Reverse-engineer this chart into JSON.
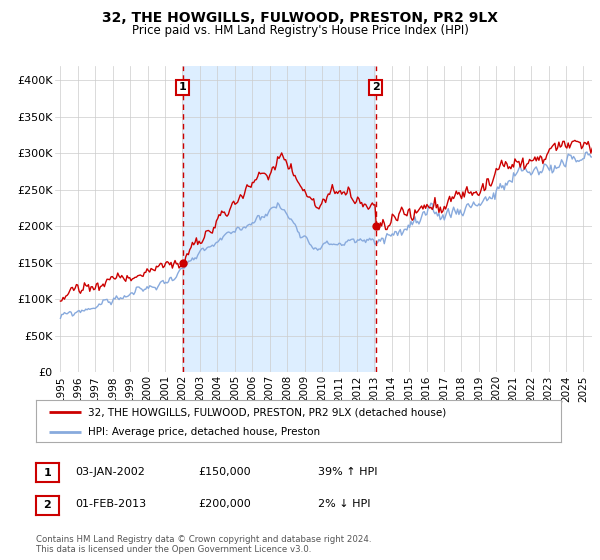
{
  "title": "32, THE HOWGILLS, FULWOOD, PRESTON, PR2 9LX",
  "subtitle": "Price paid vs. HM Land Registry's House Price Index (HPI)",
  "ylabel_ticks": [
    "£0",
    "£50K",
    "£100K",
    "£150K",
    "£200K",
    "£250K",
    "£300K",
    "£350K",
    "£400K"
  ],
  "ylim": [
    0,
    420000
  ],
  "xlim_start": 1994.7,
  "xlim_end": 2025.5,
  "marker1_date": 2002.02,
  "marker1_value": 150000,
  "marker2_date": 2013.08,
  "marker2_value": 200000,
  "marker1_label": "1",
  "marker2_label": "2",
  "legend_line1": "32, THE HOWGILLS, FULWOOD, PRESTON, PR2 9LX (detached house)",
  "legend_line2": "HPI: Average price, detached house, Preston",
  "color_red": "#cc0000",
  "color_blue": "#88aadd",
  "color_dashed": "#cc0000",
  "shade_color": "#ddeeff",
  "footer": "Contains HM Land Registry data © Crown copyright and database right 2024.\nThis data is licensed under the Open Government Licence v3.0.",
  "background_color": "#ffffff",
  "grid_color": "#cccccc"
}
